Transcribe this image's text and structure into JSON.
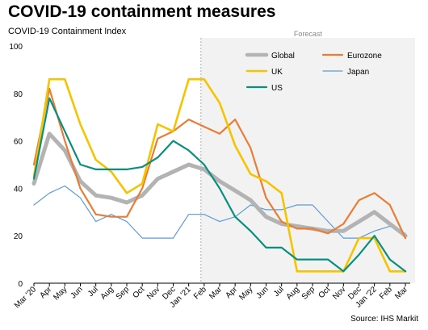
{
  "title": "COVID-19 containment measures",
  "subtitle": "COVID-19 Containment Index",
  "source": "Source: IHS Markit",
  "forecast_label": "Forecast",
  "chart_data": {
    "type": "line",
    "x": [
      "Mar '20",
      "Apr",
      "May",
      "Jun",
      "Jul",
      "Aug",
      "Sep",
      "Oct",
      "Nov",
      "Dec",
      "Jan '21",
      "Feb",
      "Mar",
      "Apr",
      "May",
      "Jun",
      "Jul",
      "Aug",
      "Sep",
      "Oct",
      "Nov",
      "Dec",
      "Jan '22",
      "Feb",
      "Mar"
    ],
    "ylim": [
      0,
      100
    ],
    "yticks": [
      0,
      20,
      40,
      60,
      80,
      100
    ],
    "grid": false,
    "legend_position": "top-right",
    "forecast_from": "Feb",
    "series": [
      {
        "name": "Global",
        "color": "#b3b3b3",
        "values": [
          42,
          63,
          56,
          43,
          37,
          36,
          34,
          37,
          44,
          47,
          50,
          48,
          43,
          39,
          35,
          28,
          25,
          24,
          23,
          22,
          22,
          26,
          30,
          25,
          20
        ]
      },
      {
        "name": "Eurozone",
        "color": "#e87d36",
        "values": [
          50,
          82,
          60,
          40,
          29,
          28,
          28,
          40,
          61,
          64,
          69,
          66,
          63,
          69,
          57,
          36,
          26,
          23,
          23,
          21,
          25,
          35,
          38,
          33,
          19
        ]
      },
      {
        "name": "UK",
        "color": "#f5c400",
        "values": [
          45,
          86,
          86,
          67,
          52,
          47,
          38,
          42,
          67,
          64,
          86,
          86,
          76,
          58,
          46,
          43,
          38,
          5,
          5,
          5,
          5,
          19,
          19,
          5,
          5
        ]
      },
      {
        "name": "Japan",
        "color": "#5b9bd5",
        "values": [
          33,
          38,
          41,
          36,
          26,
          29,
          26,
          19,
          19,
          19,
          29,
          29,
          26,
          28,
          33,
          31,
          31,
          33,
          33,
          26,
          19,
          19,
          22,
          24,
          21
        ]
      },
      {
        "name": "US",
        "color": "#0a8f7e",
        "values": [
          44,
          78,
          64,
          50,
          48,
          48,
          48,
          49,
          53,
          60,
          56,
          50,
          40,
          28,
          22,
          15,
          15,
          10,
          10,
          10,
          5,
          12,
          20,
          10,
          5
        ]
      }
    ]
  }
}
